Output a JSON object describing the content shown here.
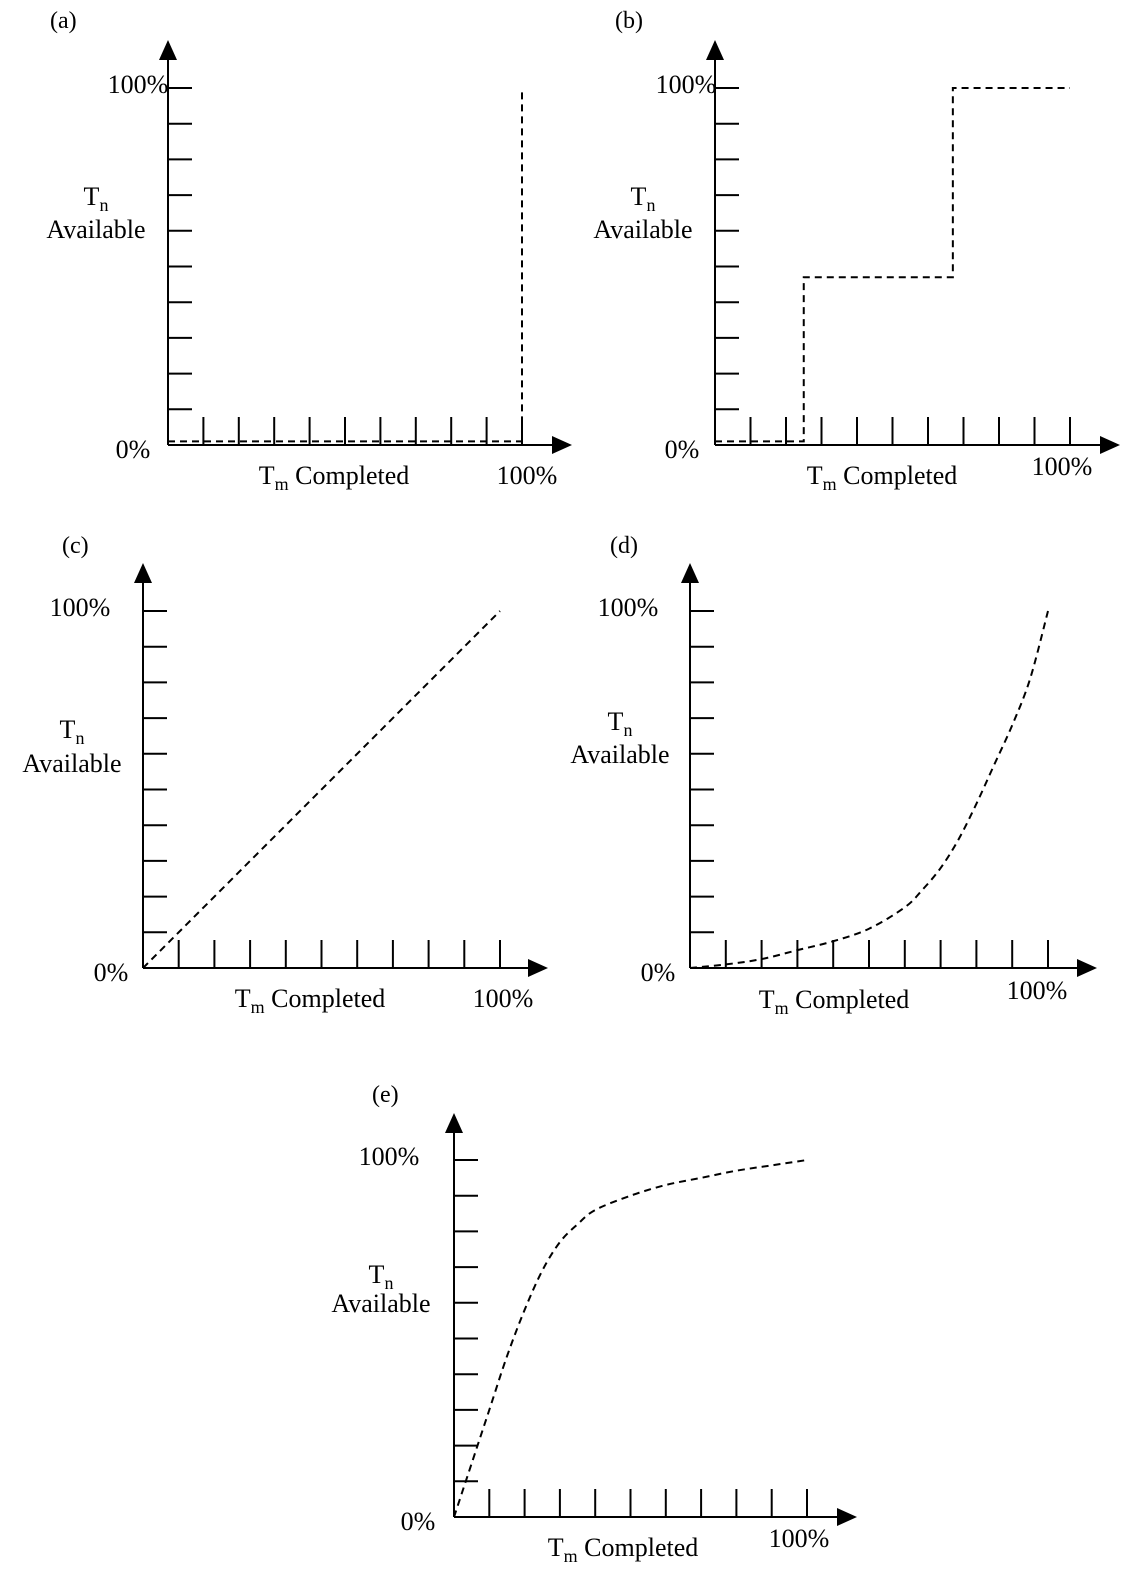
{
  "chart_data": [
    {
      "panel_label": "(a)",
      "type": "line",
      "line_style": "dashed",
      "ylabel": {
        "main": "T",
        "sub": "n",
        "second": "Available"
      },
      "xlabel": {
        "main": "T",
        "sub": "m",
        "rest": " Completed"
      },
      "y_min_label": "0%",
      "y_max_label": "100%",
      "x_max_label": "100%",
      "xlim": [
        0,
        100
      ],
      "ylim": [
        0,
        100
      ],
      "x": [
        0,
        100,
        100
      ],
      "y": [
        1,
        1,
        100
      ]
    },
    {
      "panel_label": "(b)",
      "type": "line",
      "line_style": "dashed",
      "ylabel": {
        "main": "T",
        "sub": "n",
        "second": "Available"
      },
      "xlabel": {
        "main": "T",
        "sub": "m",
        "rest": " Completed"
      },
      "y_min_label": "0%",
      "y_max_label": "100%",
      "x_max_label": "100%",
      "xlim": [
        0,
        100
      ],
      "ylim": [
        0,
        100
      ],
      "x": [
        0,
        25,
        25,
        67,
        67,
        100
      ],
      "y": [
        1,
        1,
        47,
        47,
        100,
        100
      ]
    },
    {
      "panel_label": "(c)",
      "type": "line",
      "line_style": "dashed",
      "ylabel": {
        "main": "T",
        "sub": "n",
        "second": "Available"
      },
      "xlabel": {
        "main": "T",
        "sub": "m",
        "rest": " Completed"
      },
      "y_min_label": "0%",
      "y_max_label": "100%",
      "x_max_label": "100%",
      "xlim": [
        0,
        100
      ],
      "ylim": [
        0,
        100
      ],
      "x": [
        0,
        100
      ],
      "y": [
        0,
        100
      ]
    },
    {
      "panel_label": "(d)",
      "type": "line",
      "line_style": "dashed",
      "ylabel": {
        "main": "T",
        "sub": "n",
        "second": "Available"
      },
      "xlabel": {
        "main": "T",
        "sub": "m",
        "rest": " Completed"
      },
      "y_min_label": "0%",
      "y_max_label": "100%",
      "x_max_label": "100%",
      "xlim": [
        0,
        100
      ],
      "ylim": [
        0,
        100
      ],
      "x": [
        0,
        10,
        20,
        30,
        40,
        50,
        60,
        65,
        70,
        75,
        80,
        85,
        90,
        95,
        100
      ],
      "y": [
        0,
        1,
        2.5,
        5,
        7.5,
        11,
        17,
        22,
        28,
        36,
        46,
        57,
        68,
        81,
        100
      ]
    },
    {
      "panel_label": "(e)",
      "type": "line",
      "line_style": "dashed",
      "ylabel": {
        "main": "T",
        "sub": "n",
        "second": "Available"
      },
      "xlabel": {
        "main": "T",
        "sub": "m",
        "rest": " Completed"
      },
      "y_min_label": "0%",
      "y_max_label": "100%",
      "x_max_label": "100%",
      "xlim": [
        0,
        100
      ],
      "ylim": [
        0,
        100
      ],
      "x": [
        0,
        5,
        10,
        15,
        20,
        25,
        30,
        35,
        40,
        50,
        60,
        70,
        80,
        90,
        100
      ],
      "y": [
        0,
        15,
        30,
        45,
        58,
        69,
        77,
        82,
        86,
        90,
        93,
        95,
        97,
        98.5,
        100
      ]
    }
  ]
}
